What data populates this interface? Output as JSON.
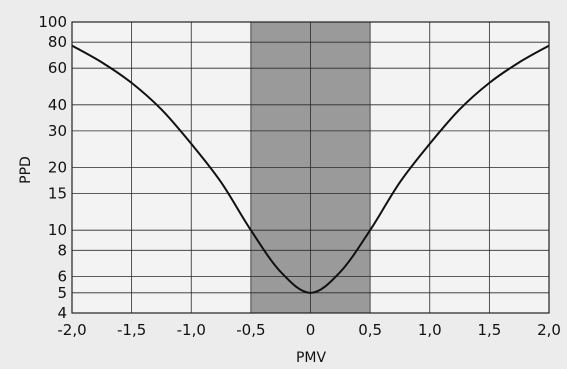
{
  "chart_data": {
    "type": "line",
    "title": "",
    "xlabel": "PMV",
    "ylabel": "PPD",
    "xlim": [
      -2.0,
      2.0
    ],
    "ylim": [
      4,
      100
    ],
    "y_scale": "log",
    "grid": true,
    "x_ticks": [
      -2.0,
      -1.5,
      -1.0,
      -0.5,
      0,
      0.5,
      1.0,
      1.5,
      2.0
    ],
    "x_tick_labels": [
      "-2,0",
      "-1,5",
      "-1,0",
      "-0,5",
      "0",
      "0,5",
      "1,0",
      "1,5",
      "2,0"
    ],
    "y_ticks": [
      4,
      5,
      6,
      8,
      10,
      15,
      20,
      30,
      40,
      60,
      80,
      100
    ],
    "y_tick_labels": [
      "4",
      "5",
      "6",
      "8",
      "10",
      "15",
      "20",
      "30",
      "40",
      "60",
      "80",
      "100"
    ],
    "shaded_region": {
      "x_from": -0.5,
      "x_to": 0.5,
      "color": "#9a9a9a"
    },
    "series": [
      {
        "x": [
          -2.0,
          -1.75,
          -1.5,
          -1.25,
          -1.0,
          -0.75,
          -0.5,
          -0.25,
          0,
          0.25,
          0.5,
          0.75,
          1.0,
          1.25,
          1.5,
          1.75,
          2.0
        ],
        "y": [
          77,
          64,
          51,
          38,
          26,
          17,
          10,
          6.3,
          5,
          6.3,
          10,
          17,
          26,
          38,
          51,
          64,
          77
        ]
      }
    ]
  }
}
